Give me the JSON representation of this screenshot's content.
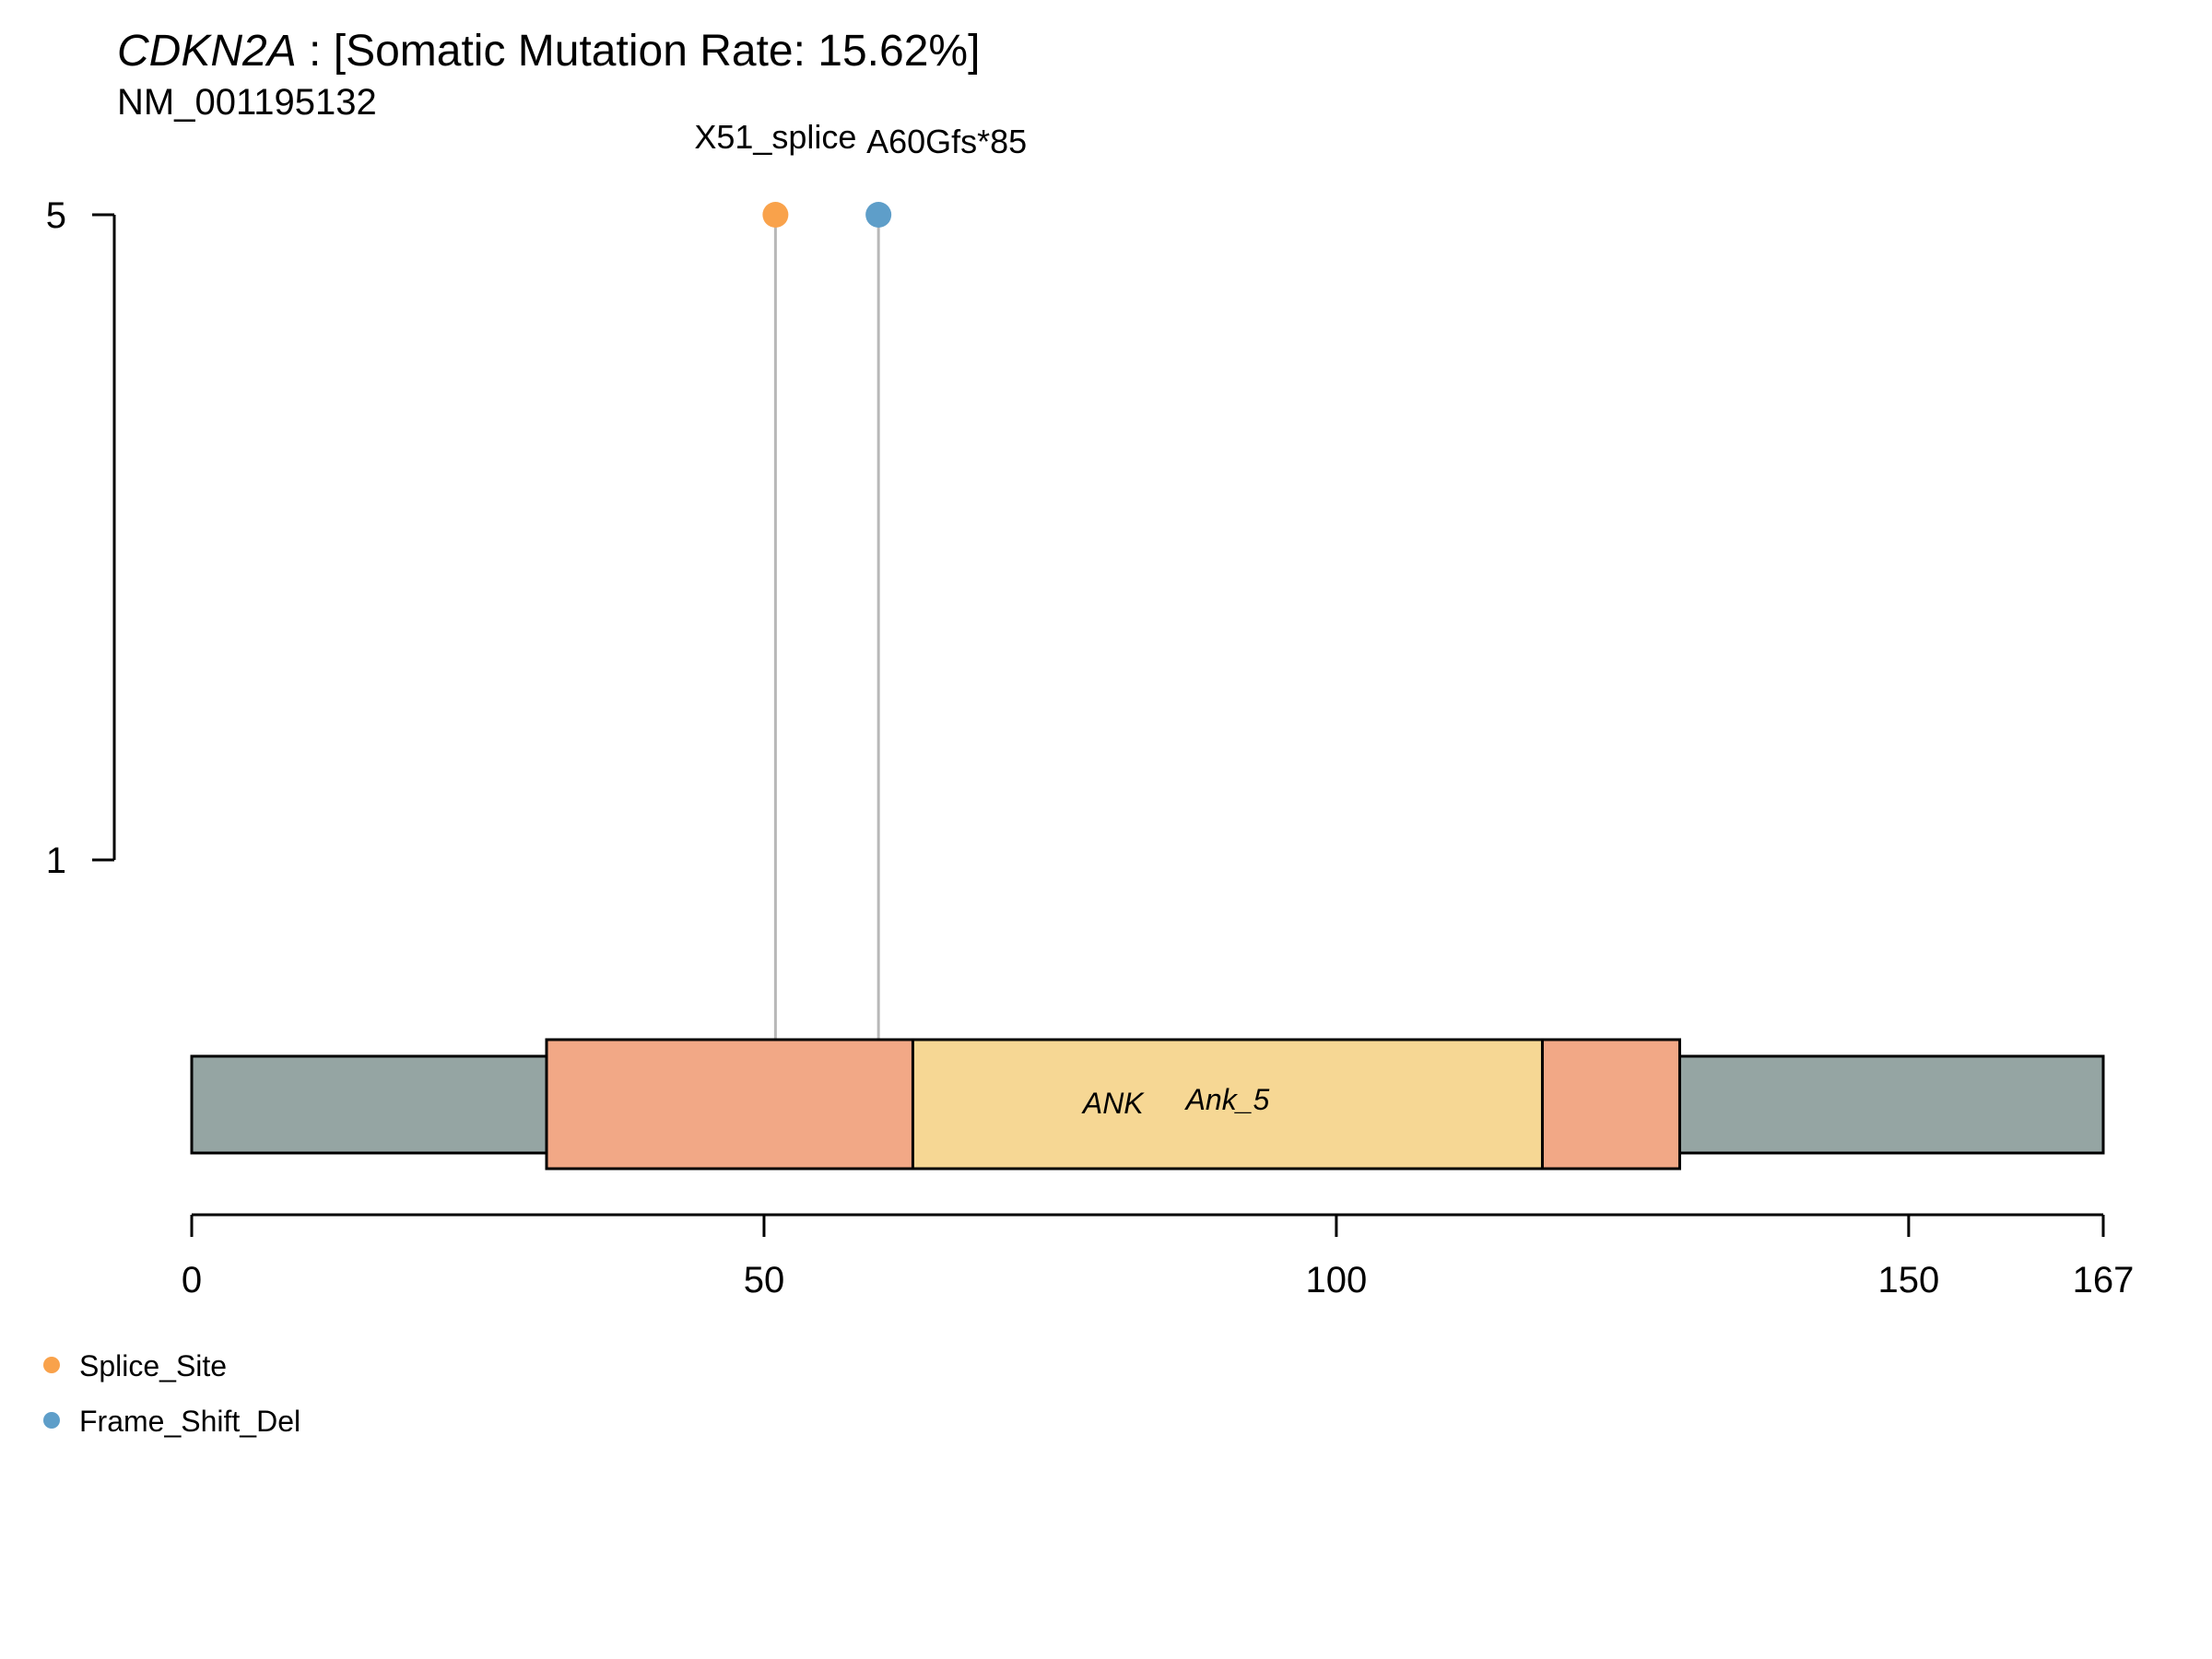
{
  "chart_data": {
    "type": "lollipop",
    "title_gene": "CDKN2A",
    "title_rest": " : [Somatic Mutation Rate: 15.62%]",
    "subtitle": "NM_001195132",
    "protein_length": 167,
    "xlim": [
      0,
      167
    ],
    "x_ticks": [
      0,
      50,
      100,
      150,
      167
    ],
    "ylim": [
      1,
      5
    ],
    "y_ticks": [
      1,
      5
    ],
    "mutations": [
      {
        "label": "X51_splice",
        "position": 51,
        "count": 5,
        "class": "Splice_Site"
      },
      {
        "label": "A60Gfs*85",
        "position": 60,
        "count": 5,
        "class": "Frame_Shift_Del"
      }
    ],
    "domains": [
      {
        "name": "ANK",
        "start": 31,
        "end": 130,
        "color": "#F2A886"
      },
      {
        "name": "Ank_5",
        "start": 63,
        "end": 118,
        "color": "#F6D794"
      }
    ],
    "legend": [
      {
        "label": "Splice_Site",
        "color": "#F9A24B"
      },
      {
        "label": "Frame_Shift_Del",
        "color": "#5E9EC9"
      }
    ],
    "protein_color": "#95A5A3",
    "stem_color": "#B8B8B8"
  }
}
